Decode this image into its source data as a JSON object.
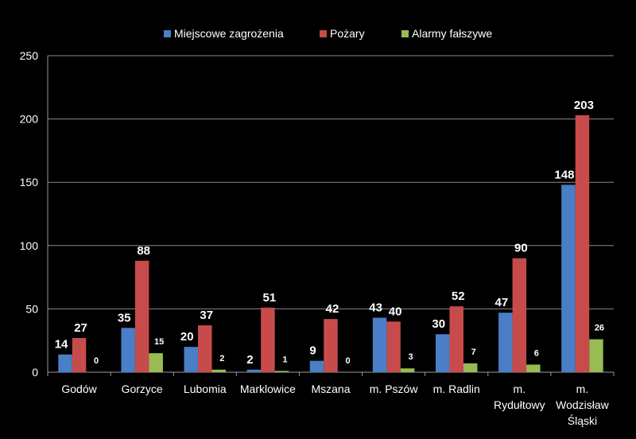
{
  "chart_data": {
    "type": "bar",
    "title": "",
    "xlabel": "",
    "ylabel": "",
    "ylim": [
      0,
      250
    ],
    "yticks": [
      0,
      50,
      100,
      150,
      200,
      250
    ],
    "grid": true,
    "legend_position": "top",
    "categories": [
      [
        "Godów"
      ],
      [
        "Gorzyce"
      ],
      [
        "Lubomia"
      ],
      [
        "Marklowice"
      ],
      [
        "Mszana"
      ],
      [
        "m. Pszów"
      ],
      [
        "m. Radlin"
      ],
      [
        "m.",
        "Rydułtowy"
      ],
      [
        "m.",
        "Wodzisław",
        "Śląski"
      ]
    ],
    "series": [
      {
        "name": "Miejscowe zagrożenia",
        "color": "#4a7ec6",
        "values": [
          14,
          35,
          20,
          2,
          9,
          43,
          30,
          47,
          148
        ]
      },
      {
        "name": "Pożary",
        "color": "#c84b4b",
        "values": [
          27,
          88,
          37,
          51,
          42,
          40,
          52,
          90,
          203
        ]
      },
      {
        "name": "Alarmy fałszywe",
        "color": "#98bb55",
        "values": [
          0,
          15,
          2,
          1,
          0,
          3,
          7,
          6,
          26
        ]
      }
    ]
  }
}
